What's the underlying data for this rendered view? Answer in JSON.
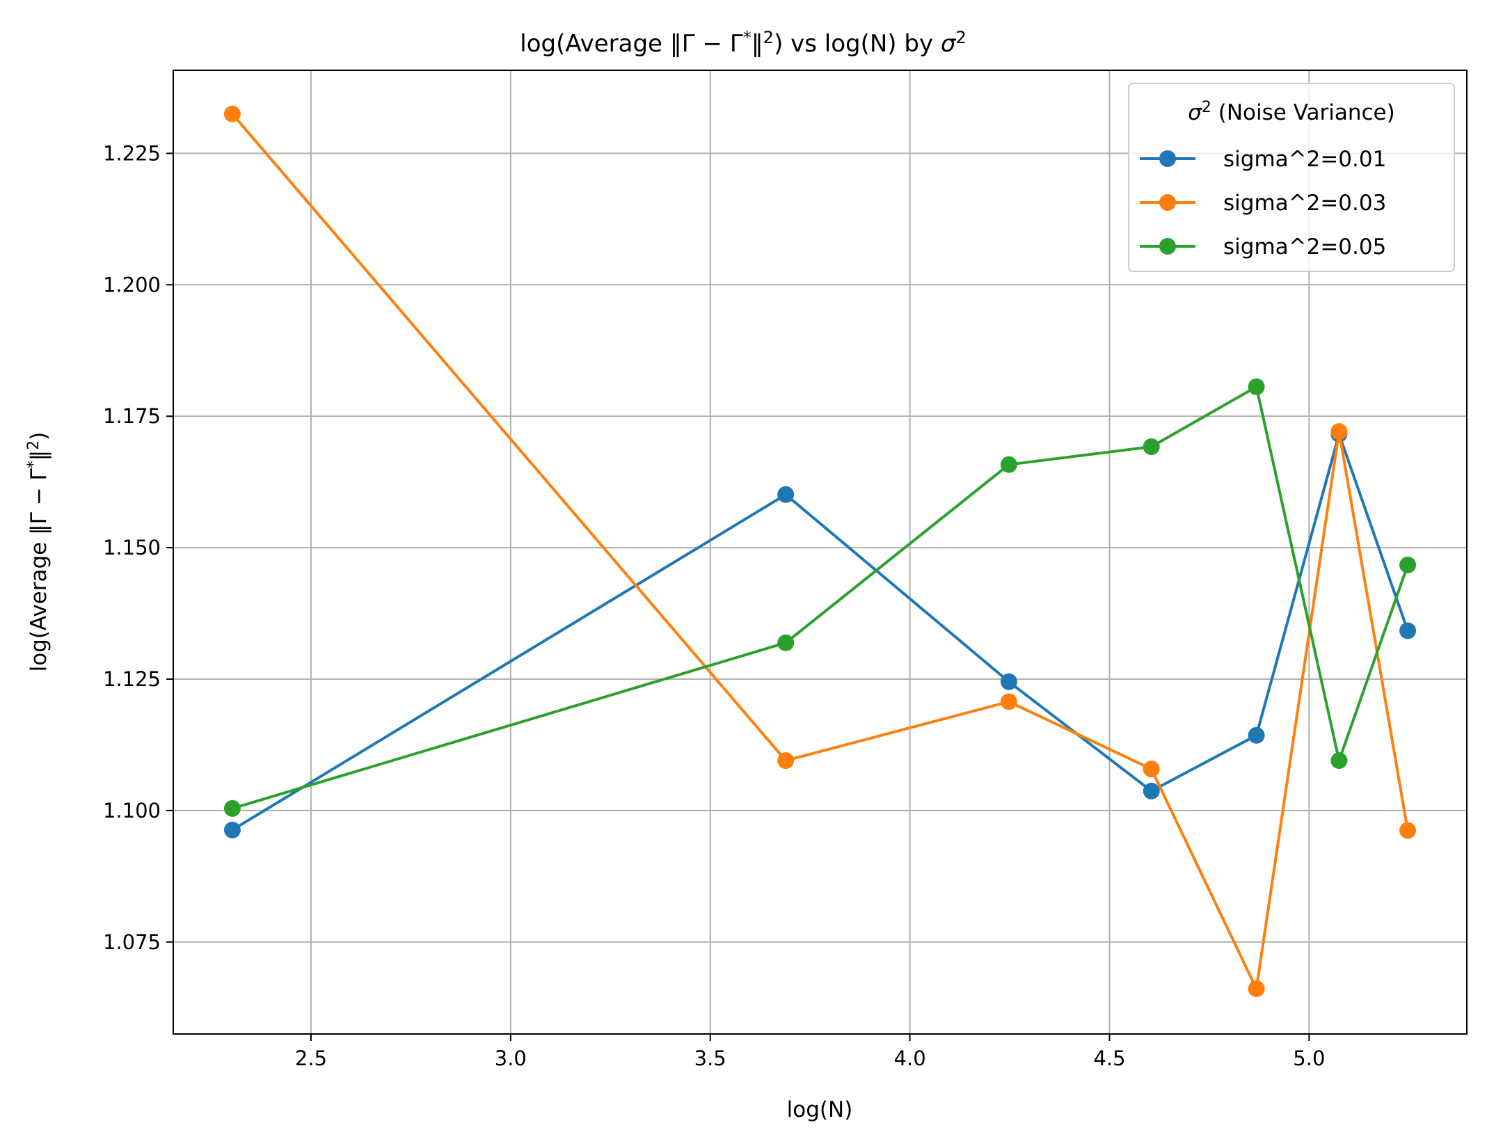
{
  "chart_data": {
    "type": "line",
    "title": "log(Average ‖Γ − Γ* ‖²) vs log(N) by σ²",
    "xlabel": "log(N)",
    "ylabel": "log(Average ‖Γ − Γ* ‖²)",
    "xlim": [
      2.155,
      5.395
    ],
    "ylim": [
      1.0575,
      1.2408
    ],
    "x_ticks": [
      2.5,
      3.0,
      3.5,
      4.0,
      4.5,
      5.0
    ],
    "x_tick_labels": [
      "2.5",
      "3.0",
      "3.5",
      "4.0",
      "4.5",
      "5.0"
    ],
    "y_ticks": [
      1.075,
      1.1,
      1.125,
      1.15,
      1.175,
      1.2,
      1.225
    ],
    "y_tick_labels": [
      "1.075",
      "1.100",
      "1.125",
      "1.150",
      "1.175",
      "1.200",
      "1.225"
    ],
    "grid": true,
    "legend": {
      "title": "σ² (Noise Variance)",
      "placement": "top-right"
    },
    "x": [
      2.303,
      3.689,
      4.248,
      4.605,
      4.868,
      5.075,
      5.247
    ],
    "series": [
      {
        "name": "sigma^2=0.01",
        "color": "#1f77b4",
        "values": [
          1.0963,
          1.1601,
          1.1245,
          1.1037,
          1.1143,
          1.1716,
          1.1342
        ]
      },
      {
        "name": "sigma^2=0.03",
        "color": "#ff7f0e",
        "values": [
          1.2325,
          1.1095,
          1.1207,
          1.1079,
          1.0661,
          1.1721,
          1.0962
        ]
      },
      {
        "name": "sigma^2=0.05",
        "color": "#2ca02c",
        "values": [
          1.1004,
          1.1319,
          1.1658,
          1.1692,
          1.1806,
          1.1095,
          1.1467
        ]
      }
    ]
  }
}
